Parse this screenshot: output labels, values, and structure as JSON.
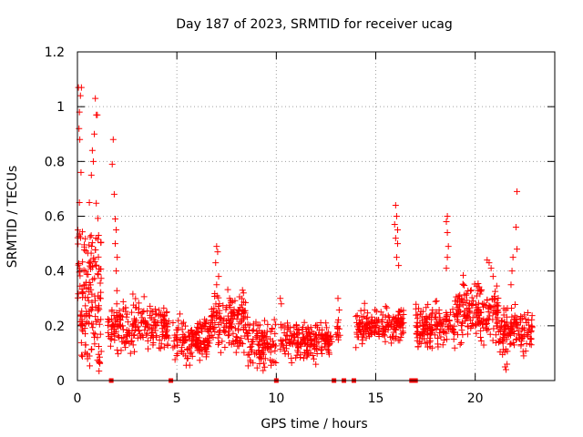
{
  "chart_data": {
    "type": "scatter",
    "title": "Day 187 of 2023, SRMTID for receiver ucag",
    "xlabel": "GPS time / hours",
    "ylabel": "SRMTID / TECUs",
    "xlim": [
      0,
      24
    ],
    "ylim": [
      0,
      1.2
    ],
    "xticks": [
      0,
      5,
      10,
      15,
      20
    ],
    "yticks": [
      0,
      0.2,
      0.4,
      0.6,
      0.8,
      1,
      1.2
    ],
    "xtick_labels": [
      "0",
      "5",
      "10",
      "15",
      "20"
    ],
    "ytick_labels": [
      "0",
      "0.2",
      "0.4",
      "0.6",
      "0.8",
      "1",
      "1.2"
    ],
    "grid": true,
    "marker_color": "#ff0000",
    "marker": "plus",
    "seed": 187,
    "segments": [
      {
        "x0": 0.0,
        "x1": 1.2,
        "base": 0.3,
        "spread": 0.2,
        "n": 160
      },
      {
        "x0": 1.5,
        "x1": 4.6,
        "base": 0.2,
        "spread": 0.07,
        "n": 220
      },
      {
        "x0": 4.8,
        "x1": 6.7,
        "base": 0.15,
        "spread": 0.06,
        "n": 150
      },
      {
        "x0": 6.7,
        "x1": 8.5,
        "base": 0.22,
        "spread": 0.08,
        "n": 150
      },
      {
        "x0": 8.5,
        "x1": 10.0,
        "base": 0.14,
        "spread": 0.06,
        "n": 110
      },
      {
        "x0": 10.2,
        "x1": 12.3,
        "base": 0.14,
        "spread": 0.05,
        "n": 150
      },
      {
        "x0": 12.3,
        "x1": 12.8,
        "base": 0.15,
        "spread": 0.04,
        "n": 40
      },
      {
        "x0": 13.0,
        "x1": 13.2,
        "base": 0.2,
        "spread": 0.05,
        "n": 14
      },
      {
        "x0": 14.0,
        "x1": 16.4,
        "base": 0.2,
        "spread": 0.05,
        "n": 180
      },
      {
        "x0": 17.0,
        "x1": 19.0,
        "base": 0.2,
        "spread": 0.06,
        "n": 150
      },
      {
        "x0": 19.0,
        "x1": 21.2,
        "base": 0.25,
        "spread": 0.08,
        "n": 180
      },
      {
        "x0": 21.2,
        "x1": 22.9,
        "base": 0.18,
        "spread": 0.06,
        "n": 130
      }
    ],
    "points": [
      {
        "x": 0.05,
        "y": 1.07
      },
      {
        "x": 0.2,
        "y": 1.07
      },
      {
        "x": 0.15,
        "y": 1.04
      },
      {
        "x": 0.1,
        "y": 0.98
      },
      {
        "x": 0.08,
        "y": 0.92
      },
      {
        "x": 0.12,
        "y": 0.88
      },
      {
        "x": 0.18,
        "y": 0.76
      },
      {
        "x": 0.1,
        "y": 0.65
      },
      {
        "x": 0.9,
        "y": 1.03
      },
      {
        "x": 1.0,
        "y": 0.97
      },
      {
        "x": 0.95,
        "y": 0.97
      },
      {
        "x": 0.85,
        "y": 0.9
      },
      {
        "x": 0.75,
        "y": 0.84
      },
      {
        "x": 0.8,
        "y": 0.8
      },
      {
        "x": 0.7,
        "y": 0.75
      },
      {
        "x": 0.6,
        "y": 0.65
      },
      {
        "x": 1.8,
        "y": 0.88
      },
      {
        "x": 1.75,
        "y": 0.79
      },
      {
        "x": 1.85,
        "y": 0.68
      },
      {
        "x": 1.9,
        "y": 0.59
      },
      {
        "x": 1.95,
        "y": 0.55
      },
      {
        "x": 1.9,
        "y": 0.5
      },
      {
        "x": 2.0,
        "y": 0.45
      },
      {
        "x": 1.95,
        "y": 0.4
      },
      {
        "x": 7.0,
        "y": 0.49
      },
      {
        "x": 7.05,
        "y": 0.47
      },
      {
        "x": 6.95,
        "y": 0.43
      },
      {
        "x": 7.1,
        "y": 0.38
      },
      {
        "x": 7.0,
        "y": 0.35
      },
      {
        "x": 8.3,
        "y": 0.33
      },
      {
        "x": 8.35,
        "y": 0.32
      },
      {
        "x": 10.2,
        "y": 0.3
      },
      {
        "x": 10.25,
        "y": 0.28
      },
      {
        "x": 13.1,
        "y": 0.3
      },
      {
        "x": 16.0,
        "y": 0.64
      },
      {
        "x": 16.05,
        "y": 0.6
      },
      {
        "x": 15.95,
        "y": 0.57
      },
      {
        "x": 16.1,
        "y": 0.55
      },
      {
        "x": 16.0,
        "y": 0.52
      },
      {
        "x": 16.1,
        "y": 0.5
      },
      {
        "x": 16.05,
        "y": 0.45
      },
      {
        "x": 16.15,
        "y": 0.42
      },
      {
        "x": 18.6,
        "y": 0.6
      },
      {
        "x": 18.55,
        "y": 0.58
      },
      {
        "x": 18.6,
        "y": 0.54
      },
      {
        "x": 18.65,
        "y": 0.49
      },
      {
        "x": 18.6,
        "y": 0.45
      },
      {
        "x": 18.55,
        "y": 0.41
      },
      {
        "x": 22.1,
        "y": 0.69
      },
      {
        "x": 22.05,
        "y": 0.56
      },
      {
        "x": 22.1,
        "y": 0.48
      },
      {
        "x": 21.9,
        "y": 0.45
      },
      {
        "x": 21.85,
        "y": 0.4
      },
      {
        "x": 21.8,
        "y": 0.35
      },
      {
        "x": 20.6,
        "y": 0.44
      },
      {
        "x": 20.7,
        "y": 0.43
      },
      {
        "x": 20.8,
        "y": 0.41
      },
      {
        "x": 20.9,
        "y": 0.38
      },
      {
        "x": 21.5,
        "y": 0.05
      },
      {
        "x": 21.55,
        "y": 0.04
      },
      {
        "x": 21.6,
        "y": 0.06
      }
    ],
    "zero_markers": [
      1.7,
      4.7,
      10.0,
      12.9,
      13.4,
      13.9,
      16.8,
      17.0
    ]
  }
}
